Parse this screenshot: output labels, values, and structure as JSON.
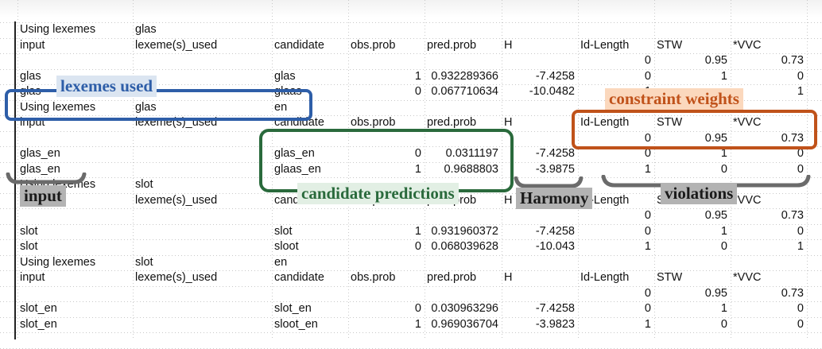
{
  "rows": [
    [
      "Using lexemes",
      "glas",
      "",
      "",
      "",
      "",
      "",
      "",
      ""
    ],
    [
      "input",
      "lexeme(s)_used",
      "candidate",
      "obs.prob",
      "pred.prob",
      "H",
      "Id-Length",
      "STW",
      "*VVC"
    ],
    [
      "",
      "",
      "",
      "",
      "",
      "",
      "0",
      "0.95",
      "0.73"
    ],
    [
      "glas",
      "",
      "glas",
      "1",
      "0.932289366",
      "-7.4258",
      "0",
      "1",
      "0"
    ],
    [
      "glas",
      "",
      "glaas",
      "0",
      "0.067710634",
      "-10.0482",
      "1",
      "",
      "1"
    ],
    [
      "Using lexemes",
      "glas",
      "en",
      "",
      "",
      "",
      "",
      "",
      ""
    ],
    [
      "input",
      "lexeme(s)_used",
      "candidate",
      "obs.prob",
      "pred.prob",
      "H",
      "Id-Length",
      "STW",
      "*VVC"
    ],
    [
      "",
      "",
      "",
      "",
      "",
      "",
      "0",
      "0.95",
      "0.73"
    ],
    [
      "glas_en",
      "",
      "glas_en",
      "0",
      "0.0311197",
      "-7.4258",
      "0",
      "1",
      "0"
    ],
    [
      "glas_en",
      "",
      "glaas_en",
      "1",
      "0.9688803",
      "-3.9875",
      "1",
      "0",
      "0"
    ],
    [
      "Using lexemes",
      "slot",
      "",
      "",
      "",
      "",
      "",
      "",
      ""
    ],
    [
      "input",
      "lexeme(s)_used",
      "candidate",
      "obs.prob",
      "pred.prob",
      "H",
      "Id-Length",
      "STW",
      "*VVC"
    ],
    [
      "",
      "",
      "",
      "",
      "",
      "",
      "0",
      "0.95",
      "0.73"
    ],
    [
      "slot",
      "",
      "slot",
      "1",
      "0.931960372",
      "-7.4258",
      "0",
      "1",
      "0"
    ],
    [
      "slot",
      "",
      "sloot",
      "0",
      "0.068039628",
      "-10.043",
      "1",
      "0",
      "1"
    ],
    [
      "Using lexemes",
      "slot",
      "en",
      "",
      "",
      "",
      "",
      "",
      ""
    ],
    [
      "input",
      "lexeme(s)_used",
      "candidate",
      "obs.prob",
      "pred.prob",
      "H",
      "Id-Length",
      "STW",
      "*VVC"
    ],
    [
      "",
      "",
      "",
      "",
      "",
      "",
      "0",
      "0.95",
      "0.73"
    ],
    [
      "slot_en",
      "",
      "slot_en",
      "0",
      "0.030963296",
      "-7.4258",
      "0",
      "1",
      "0"
    ],
    [
      "slot_en",
      "",
      "sloot_en",
      "1",
      "0.969036704",
      "-3.9823",
      "1",
      "0",
      "0"
    ]
  ],
  "annotations": {
    "lexemes_used": "lexemes used",
    "constraint_weights": "constraint weights",
    "candidate_predictions": "candidate predictions",
    "input": "input",
    "harmony": "Harmony",
    "violations": "violations"
  },
  "colors": {
    "blue": "#2e5ea8",
    "green": "#2a6a3c",
    "orange": "#c0521a",
    "gray_label": "#b3b3b3",
    "brace": "#6b6b6b"
  }
}
